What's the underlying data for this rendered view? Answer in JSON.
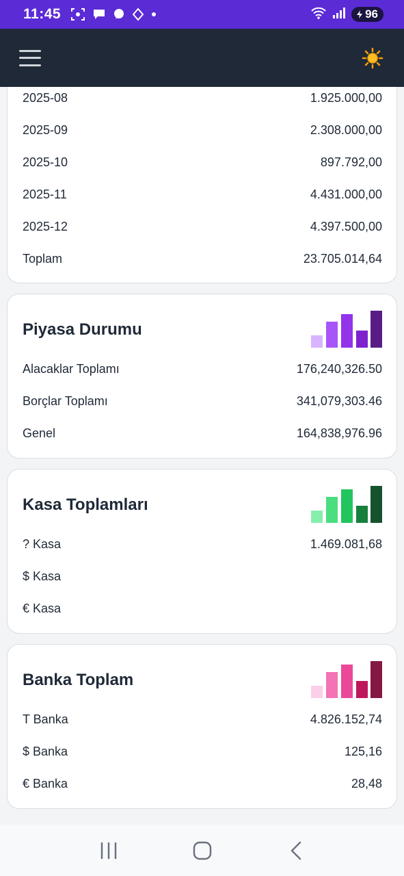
{
  "status_bar": {
    "time": "11:45",
    "battery": "96",
    "icons": [
      "screenshot-icon",
      "chat-icon",
      "messenger-icon",
      "navigation-icon",
      "dot-icon",
      "wifi-icon",
      "signal-icon",
      "battery-icon"
    ]
  },
  "header": {
    "menu_icon": "hamburger-menu-icon",
    "theme_icon": "sun-icon"
  },
  "monthly_card": {
    "rows": [
      {
        "label": "2025-08",
        "value": "1.925.000,00"
      },
      {
        "label": "2025-09",
        "value": "2.308.000,00"
      },
      {
        "label": "2025-10",
        "value": "897.792,00"
      },
      {
        "label": "2025-11",
        "value": "4.431.000,00"
      },
      {
        "label": "2025-12",
        "value": "4.397.500,00"
      }
    ],
    "total": {
      "label": "Toplam",
      "value": "23.705.014,64"
    }
  },
  "market_card": {
    "title": "Piyasa Durumu",
    "bar_icon_colors": [
      "#d8b4fe",
      "#a855f7",
      "#9333ea",
      "#7e22ce",
      "#581c87"
    ],
    "rows": [
      {
        "label": "Alacaklar Toplamı",
        "value": "176,240,326.50"
      },
      {
        "label": "Borçlar Toplamı",
        "value": "341,079,303.46"
      },
      {
        "label": "Genel",
        "value": "164,838,976.96"
      }
    ]
  },
  "cash_card": {
    "title": "Kasa Toplamları",
    "bar_icon_colors": [
      "#86efac",
      "#4ade80",
      "#22c55e",
      "#15803d",
      "#14532d"
    ],
    "rows": [
      {
        "label": "? Kasa",
        "value": "1.469.081,68"
      },
      {
        "label": "$ Kasa",
        "value": ""
      },
      {
        "label": "€ Kasa",
        "value": ""
      }
    ]
  },
  "bank_card": {
    "title": "Banka Toplam",
    "bar_icon_colors": [
      "#fbcfe8",
      "#f472b6",
      "#ec4899",
      "#be185d",
      "#831843"
    ],
    "rows": [
      {
        "label": "T Banka",
        "value": "4.826.152,74"
      },
      {
        "label": "$ Banka",
        "value": "125,16"
      },
      {
        "label": "€ Banka",
        "value": "28,48"
      }
    ]
  },
  "nav": {
    "icons": [
      "recent-apps-icon",
      "home-icon",
      "back-icon"
    ]
  },
  "colors": {
    "status_bar": "#5b2bd6",
    "header": "#1f2937",
    "background": "#f3f4f6"
  }
}
